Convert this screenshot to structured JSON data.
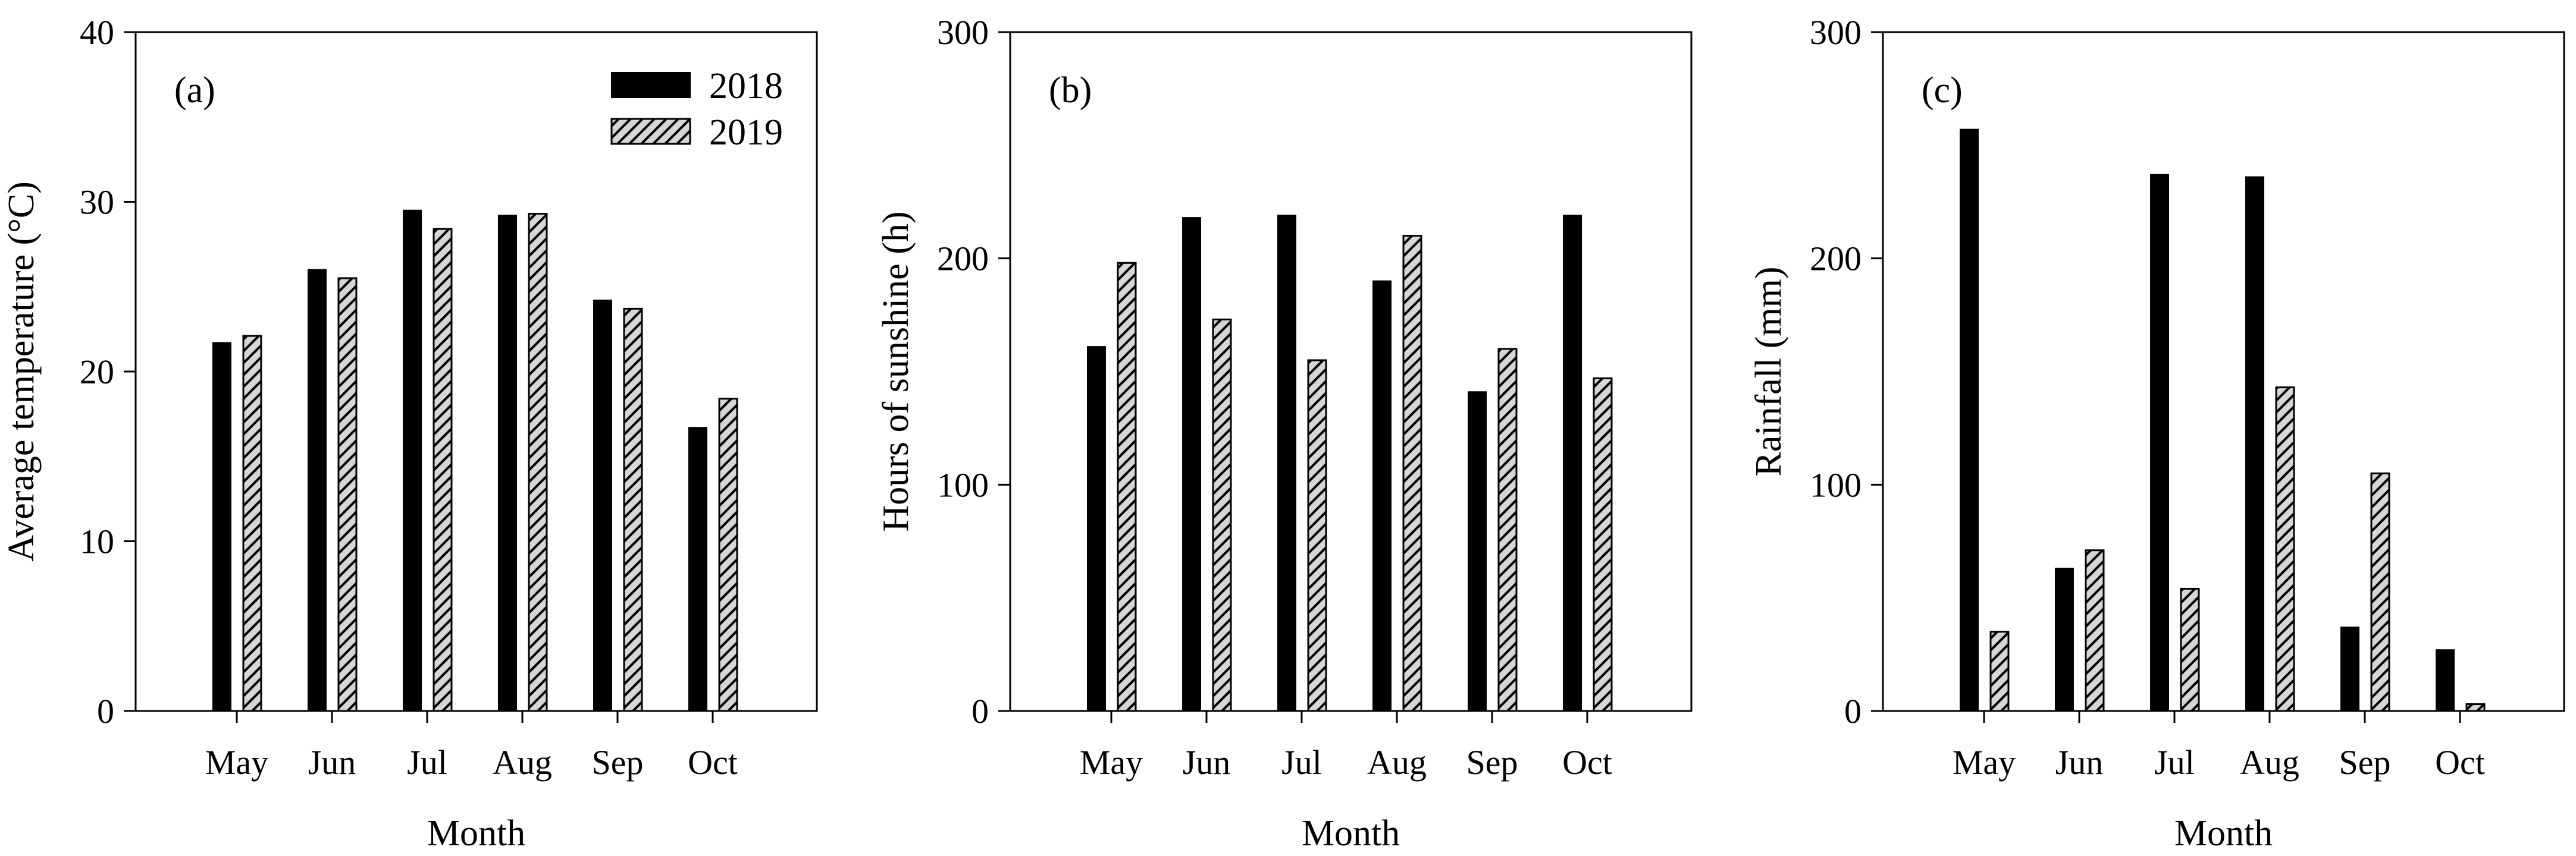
{
  "figure": {
    "background": "#ffffff",
    "text_color": "#000000",
    "bar_color_2018": "#000000",
    "bar_fill_2019": "#d6d6d6",
    "hatch_line_color": "#000000"
  },
  "legend": {
    "items": [
      {
        "label": "2018",
        "style": "solid-black"
      },
      {
        "label": "2019",
        "style": "gray-diagonal-hatch"
      }
    ]
  },
  "chart_data": [
    {
      "type": "bar",
      "panel_label": "(a)",
      "xlabel": "Month",
      "ylabel": "Average temperature (°C)",
      "ylim": [
        0,
        40
      ],
      "yticks": [
        0,
        10,
        20,
        30,
        40
      ],
      "grid": false,
      "legend": true,
      "legend_position": "top-right-inside",
      "categories": [
        "May",
        "Jun",
        "Jul",
        "Aug",
        "Sep",
        "Oct"
      ],
      "series": [
        {
          "name": "2018",
          "values": [
            21.7,
            26.0,
            29.5,
            29.2,
            24.2,
            16.7
          ]
        },
        {
          "name": "2019",
          "values": [
            22.1,
            25.5,
            28.4,
            29.3,
            23.7,
            18.4
          ]
        }
      ]
    },
    {
      "type": "bar",
      "panel_label": "(b)",
      "xlabel": "Month",
      "ylabel": "Hours of sunshine (h)",
      "ylim": [
        0,
        300
      ],
      "yticks": [
        0,
        100,
        200,
        300
      ],
      "grid": false,
      "legend": false,
      "categories": [
        "May",
        "Jun",
        "Jul",
        "Aug",
        "Sep",
        "Oct"
      ],
      "series": [
        {
          "name": "2018",
          "values": [
            161,
            218,
            219,
            190,
            141,
            219
          ]
        },
        {
          "name": "2019",
          "values": [
            198,
            173,
            155,
            210,
            160,
            147
          ]
        }
      ]
    },
    {
      "type": "bar",
      "panel_label": "(c)",
      "xlabel": "Month",
      "ylabel": "Rainfall (mm)",
      "ylim": [
        0,
        300
      ],
      "yticks": [
        0,
        100,
        200,
        300
      ],
      "grid": false,
      "legend": false,
      "categories": [
        "May",
        "Jun",
        "Jul",
        "Aug",
        "Sep",
        "Oct"
      ],
      "series": [
        {
          "name": "2018",
          "values": [
            257,
            63,
            237,
            236,
            37,
            27
          ]
        },
        {
          "name": "2019",
          "values": [
            35,
            71,
            54,
            143,
            105,
            3
          ]
        }
      ]
    }
  ]
}
